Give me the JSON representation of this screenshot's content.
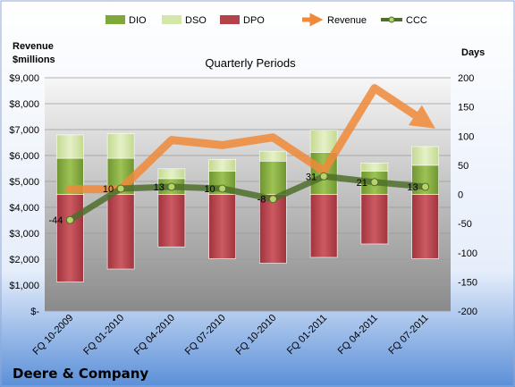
{
  "chart_data": {
    "type": "bar",
    "title": "Quarterly Periods",
    "company": "Deere & Company",
    "left_axis_title": [
      "Revenue",
      "$millions"
    ],
    "right_axis_title": "Days",
    "categories": [
      "FQ 10-2009",
      "FQ 01-2010",
      "FQ 04-2010",
      "FQ 07-2010",
      "FQ 10-2010",
      "FQ 01-2011",
      "FQ 04-2011",
      "FQ 07-2011"
    ],
    "left_ticks": [
      "$-",
      "$1,000",
      "$2,000",
      "$3,000",
      "$4,000",
      "$5,000",
      "$6,000",
      "$7,000",
      "$8,000",
      "$9,000"
    ],
    "right_ticks": [
      "-200",
      "-150",
      "-100",
      "-50",
      "0",
      "50",
      "100",
      "150",
      "200"
    ],
    "left_ylim": [
      0,
      9000
    ],
    "right_ylim": [
      -200,
      200
    ],
    "legend": [
      "DIO",
      "DSO",
      "DPO",
      "Revenue",
      "CCC"
    ],
    "series": [
      {
        "name": "DIO",
        "axis": "right",
        "values": [
          62,
          62,
          27,
          40,
          57,
          72,
          40,
          50
        ]
      },
      {
        "name": "DSO",
        "axis": "right",
        "values": [
          40,
          42,
          17,
          20,
          17,
          38,
          14,
          32
        ]
      },
      {
        "name": "DPO",
        "axis": "right",
        "values": [
          -150,
          -128,
          -90,
          -110,
          -118,
          -108,
          -85,
          -110
        ]
      },
      {
        "name": "Revenue",
        "axis": "left",
        "values": [
          4700,
          4700,
          6600,
          6400,
          6700,
          5400,
          8600,
          7300
        ]
      },
      {
        "name": "CCC",
        "axis": "right",
        "values": [
          -44,
          10,
          13,
          10,
          -8,
          31,
          21,
          13
        ]
      }
    ],
    "ccc_labels": [
      "-44",
      "10",
      "13",
      "10",
      "-8",
      "31",
      "21",
      "13"
    ],
    "colors": {
      "DIO": "#7fa83a",
      "DSO": "#d5e6a9",
      "DPO": "#b5414a",
      "Revenue": "#f08a3a",
      "CCC": "#4e6e2c",
      "background_top": "#ffffff",
      "background_bottom": "#5a8fd8",
      "plot_top": "#f7f7f7",
      "plot_bottom": "#8a8a8a"
    }
  }
}
